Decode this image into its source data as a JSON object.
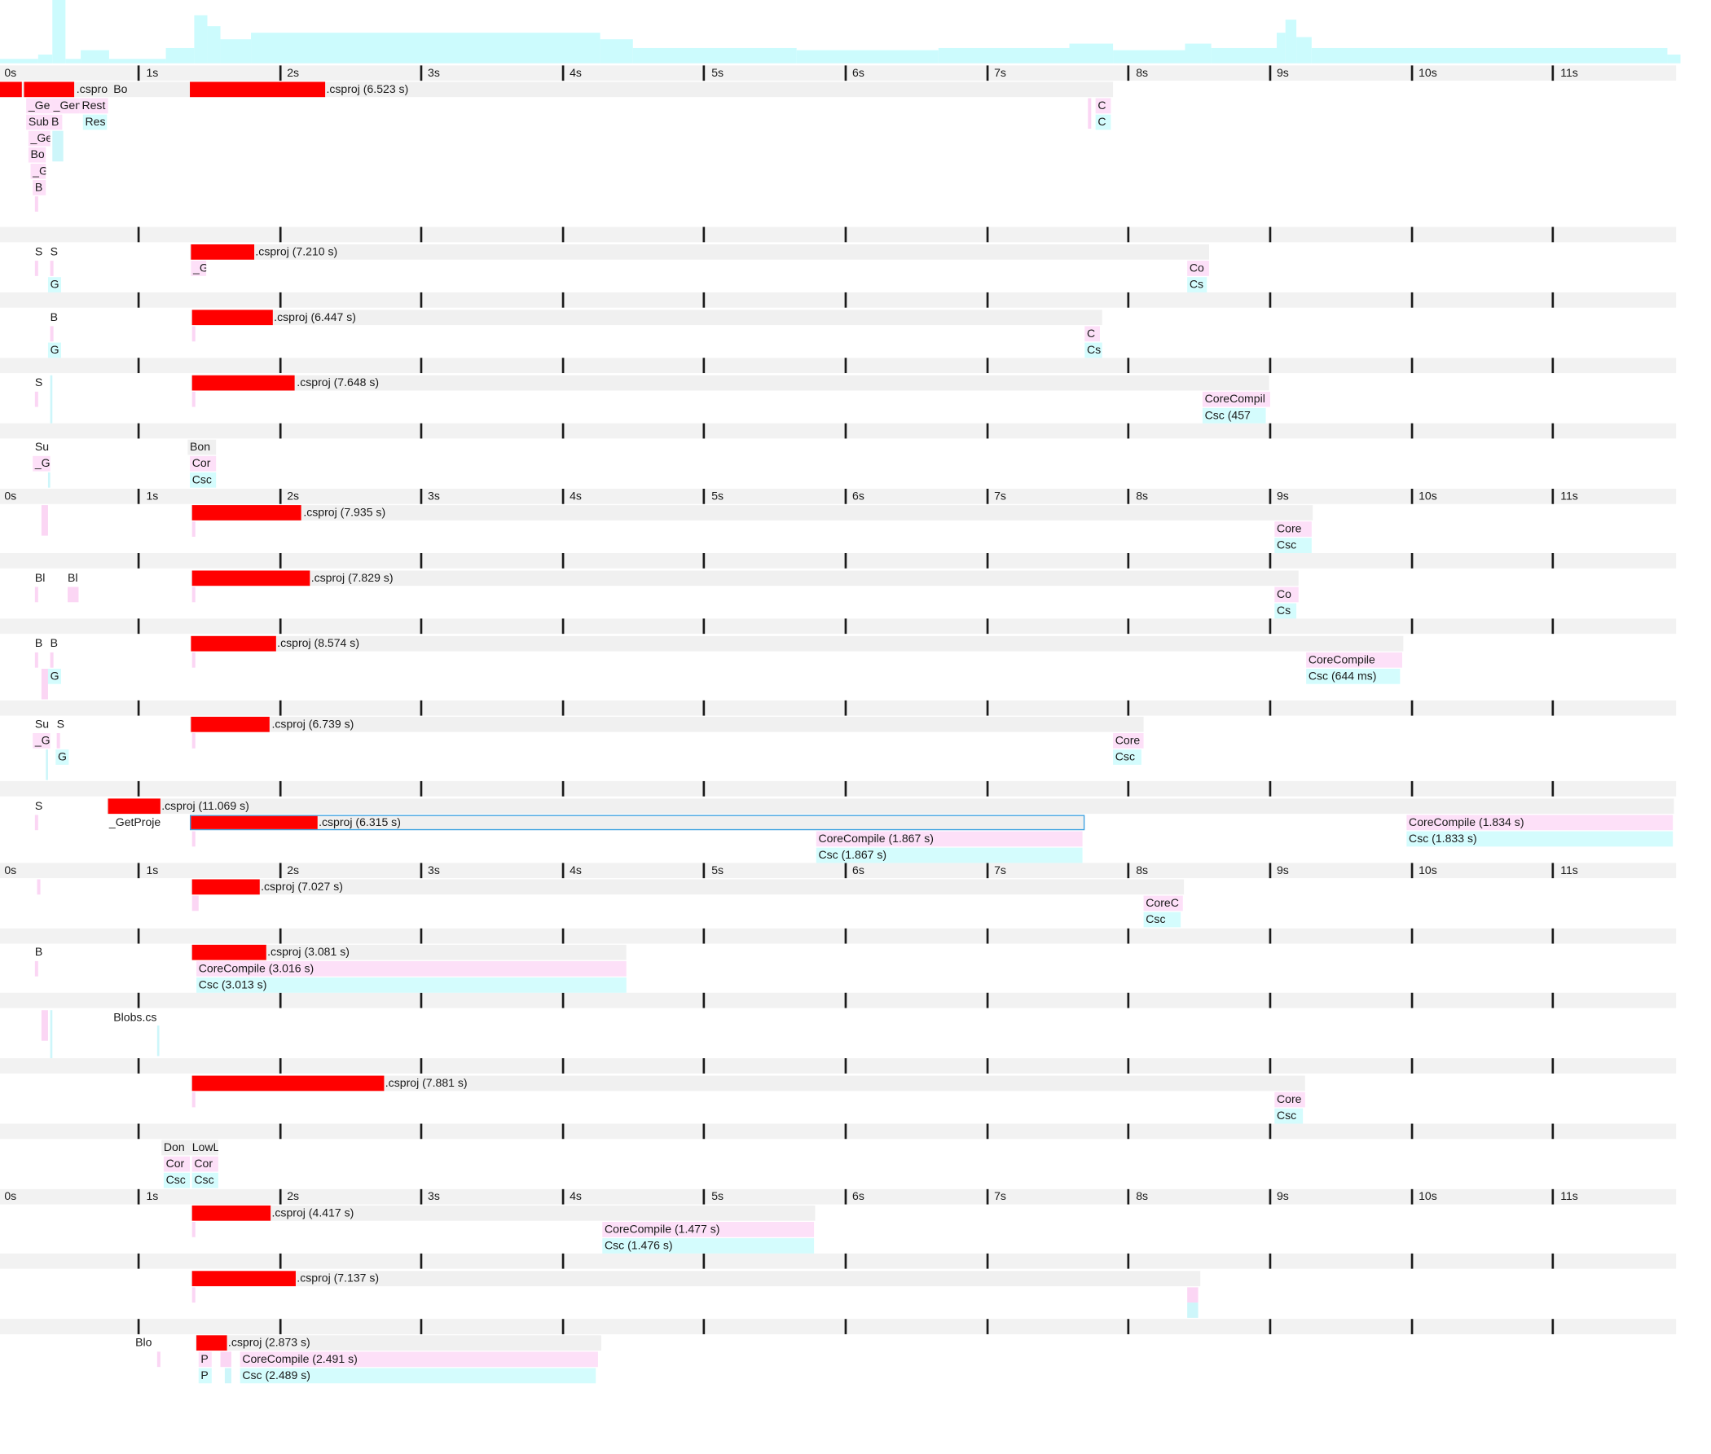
{
  "axis": {
    "ticks": [
      "0s",
      "1s",
      "2s",
      "3s",
      "4s",
      "5s",
      "6s",
      "7s",
      "8s",
      "9s",
      "10s",
      "11s"
    ]
  },
  "colors": {
    "exclusive": "#ff0000",
    "project": "#f0f0f0",
    "target": "#fde0f8",
    "task": "#d4fcfd",
    "selection": "#3aa0e0"
  },
  "project_1": {
    "project_label": ".csproj (6.523 s)",
    "pre_label": ".cspro",
    "bo": "Bo",
    "ge": "_Ge",
    "gen": "_Gen",
    "rest": "Rest",
    "sub": "Sub",
    "b": "B",
    "res": "Res",
    "ge2": "_Ge",
    "bo2": "Bo",
    "g": "_G",
    "b2": "B",
    "c1": "C",
    "c2": "C"
  },
  "project_2": {
    "project_label": ".csproj (7.210 s)",
    "s1": "S",
    "s2": "S",
    "g": "G",
    "g_sub": "_G",
    "core": "Co",
    "csc": "Cs"
  },
  "project_3": {
    "project_label": ".csproj (6.447 s)",
    "b": "B",
    "g": "G",
    "core": "C",
    "csc": "Cs"
  },
  "project_4": {
    "project_label": ".csproj (7.648 s)",
    "s": "S",
    "core": "CoreCompil",
    "csc": "Csc (457"
  },
  "project_5": {
    "su": "Su",
    "g": "_G",
    "bon": "Bon",
    "core": "Cor",
    "csc": "Csc"
  },
  "project_6": {
    "project_label": ".csproj (7.935 s)",
    "core": "Core",
    "csc": "Csc"
  },
  "project_7": {
    "project_label": ".csproj (7.829 s)",
    "bl1": "Bl",
    "bl2": "Bl",
    "core": "Co",
    "csc": "Cs"
  },
  "project_8": {
    "project_label": ".csproj (8.574 s)",
    "b1": "B",
    "b2": "B",
    "g": "G",
    "core": "CoreCompile",
    "csc": "Csc (644 ms)"
  },
  "project_9": {
    "project_label": ".csproj (6.739 s)",
    "su": "Su",
    "s": "S",
    "g1": "_G",
    "g2": "G",
    "core": "Core",
    "csc": "Csc"
  },
  "project_10": {
    "outer_label": ".csproj (11.069 s)",
    "inner_label": ".csproj (6.315 s)",
    "s": "S",
    "get_proj": "_GetProje",
    "core_a": "CoreCompile (1.867 s)",
    "csc_a": "Csc (1.867 s)",
    "core_b": "CoreCompile (1.834 s)",
    "csc_b": "Csc (1.833 s)"
  },
  "project_11": {
    "project_label": ".csproj (7.027 s)",
    "core": "CoreC",
    "csc": "Csc"
  },
  "project_12": {
    "project_label": ".csproj (3.081 s)",
    "b": "B",
    "core": "CoreCompile (3.016 s)",
    "csc": "Csc (3.013 s)"
  },
  "project_13": {
    "blobs": "Blobs.cs"
  },
  "project_14": {
    "project_label": ".csproj (7.881 s)",
    "core": "Core",
    "csc": "Csc"
  },
  "project_15": {
    "don": "Don",
    "lowl": "LowL",
    "cor1": "Cor",
    "cor2": "Cor",
    "csc1": "Csc",
    "csc2": "Csc"
  },
  "project_16": {
    "project_label": ".csproj (4.417 s)",
    "core": "CoreCompile (1.477 s)",
    "csc": "Csc (1.476 s)"
  },
  "project_17": {
    "project_label": ".csproj (7.137 s)"
  },
  "project_18": {
    "project_label": ".csproj (2.873 s)",
    "blo": "Blo",
    "p1": "P",
    "p2": "P",
    "core": "CoreCompile (2.491 s)",
    "csc": "Csc (2.489 s)"
  }
}
